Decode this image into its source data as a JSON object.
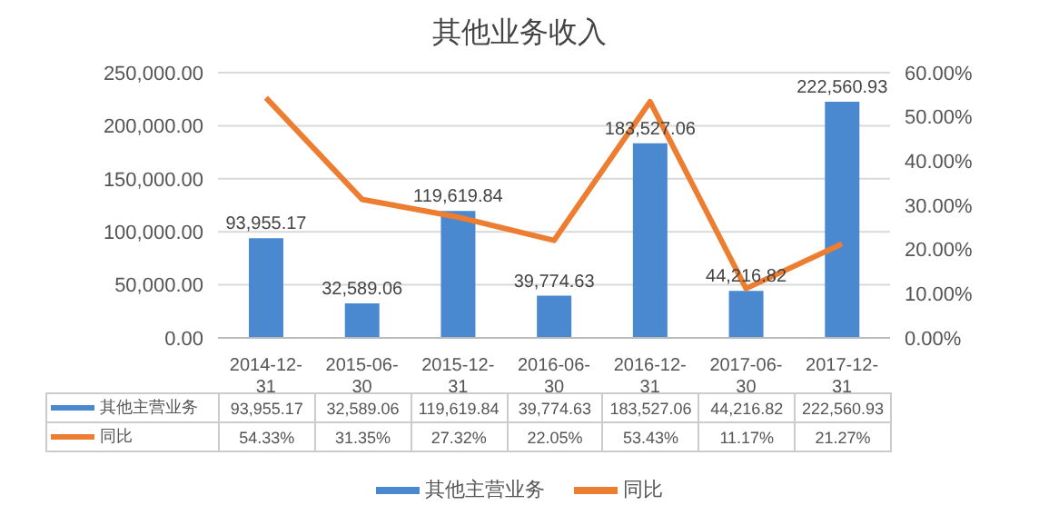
{
  "chart_data": {
    "type": "bar",
    "title": "其他业务收入",
    "categories": [
      "2014-12-31",
      "2015-06-30",
      "2015-12-31",
      "2016-06-30",
      "2016-12-31",
      "2017-06-30",
      "2017-12-31"
    ],
    "series": [
      {
        "name": "其他主营业务",
        "color": "#4a89d0",
        "values": [
          93955.17,
          32589.06,
          119619.84,
          39774.63,
          183527.06,
          44216.82,
          222560.93
        ],
        "value_labels": [
          "93,955.17",
          "32,589.06",
          "119,619.84",
          "39,774.63",
          "183,527.06",
          "44,216.82",
          "222,560.93"
        ]
      },
      {
        "name": "同比",
        "type": "line",
        "axis": "y2",
        "color": "#ed7d31",
        "values": [
          54.33,
          31.35,
          27.32,
          22.05,
          53.43,
          11.17,
          21.27
        ],
        "value_labels": [
          "54.33%",
          "31.35%",
          "27.32%",
          "22.05%",
          "53.43%",
          "11.17%",
          "21.27%"
        ]
      }
    ],
    "ylim": [
      0,
      250000
    ],
    "yticks": [
      {
        "value": 0,
        "label": "0.00"
      },
      {
        "value": 50000,
        "label": "50,000.00"
      },
      {
        "value": 100000,
        "label": "100,000.00"
      },
      {
        "value": 150000,
        "label": "150,000.00"
      },
      {
        "value": 200000,
        "label": "200,000.00"
      },
      {
        "value": 250000,
        "label": "250,000.00"
      }
    ],
    "y2lim": [
      0,
      60
    ],
    "y2ticks": [
      {
        "value": 0,
        "label": "0.00%"
      },
      {
        "value": 10,
        "label": "10.00%"
      },
      {
        "value": 20,
        "label": "20.00%"
      },
      {
        "value": 30,
        "label": "30.00%"
      },
      {
        "value": 40,
        "label": "40.00%"
      },
      {
        "value": 50,
        "label": "50.00%"
      },
      {
        "value": 60,
        "label": "60.00%"
      }
    ],
    "grid": "y",
    "legend": "bottom",
    "marker": "none",
    "line_style": "solid"
  }
}
